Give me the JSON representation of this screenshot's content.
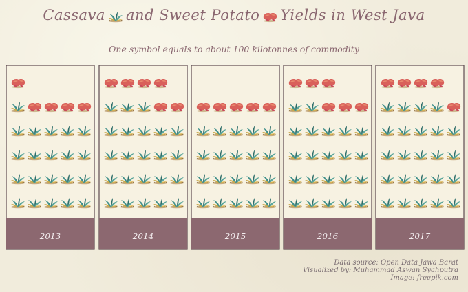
{
  "title": {
    "part1": "Cassava",
    "part2": "and Sweet Potato",
    "part3": "Yields in West Java"
  },
  "subtitle": "One symbol equals to about 100 kilotonnes of commodity",
  "credits": {
    "source": "Data source: Open Data Jawa Barat",
    "author": "Visualized by: Muhammad Aswan Syahputra",
    "image": "Image: freepik.com"
  },
  "icons": {
    "cassava": "cassava-plant-icon",
    "sweet_potato": "sweet-potato-icon"
  },
  "colors": {
    "panel_bg": "#f7f2e2",
    "year_band": "#8c6870",
    "title": "#8a6770",
    "leaf": "#3f8f8a",
    "leaf_dark": "#2f6f6b",
    "tuber": "#d9605a",
    "tuber_light": "#e98a6e",
    "soil": "#b5925d"
  },
  "chart_data": {
    "type": "pictogram",
    "unit_per_symbol": 100,
    "unit": "kilotonnes",
    "categories": [
      "2013",
      "2014",
      "2015",
      "2016",
      "2017"
    ],
    "series": [
      {
        "name": "Cassava",
        "icon": "cassava-plant-icon",
        "symbols": [
          21,
          23,
          20,
          22,
          24
        ]
      },
      {
        "name": "Sweet Potato",
        "icon": "sweet-potato-icon",
        "symbols": [
          5,
          6,
          5,
          6,
          5
        ]
      }
    ]
  }
}
